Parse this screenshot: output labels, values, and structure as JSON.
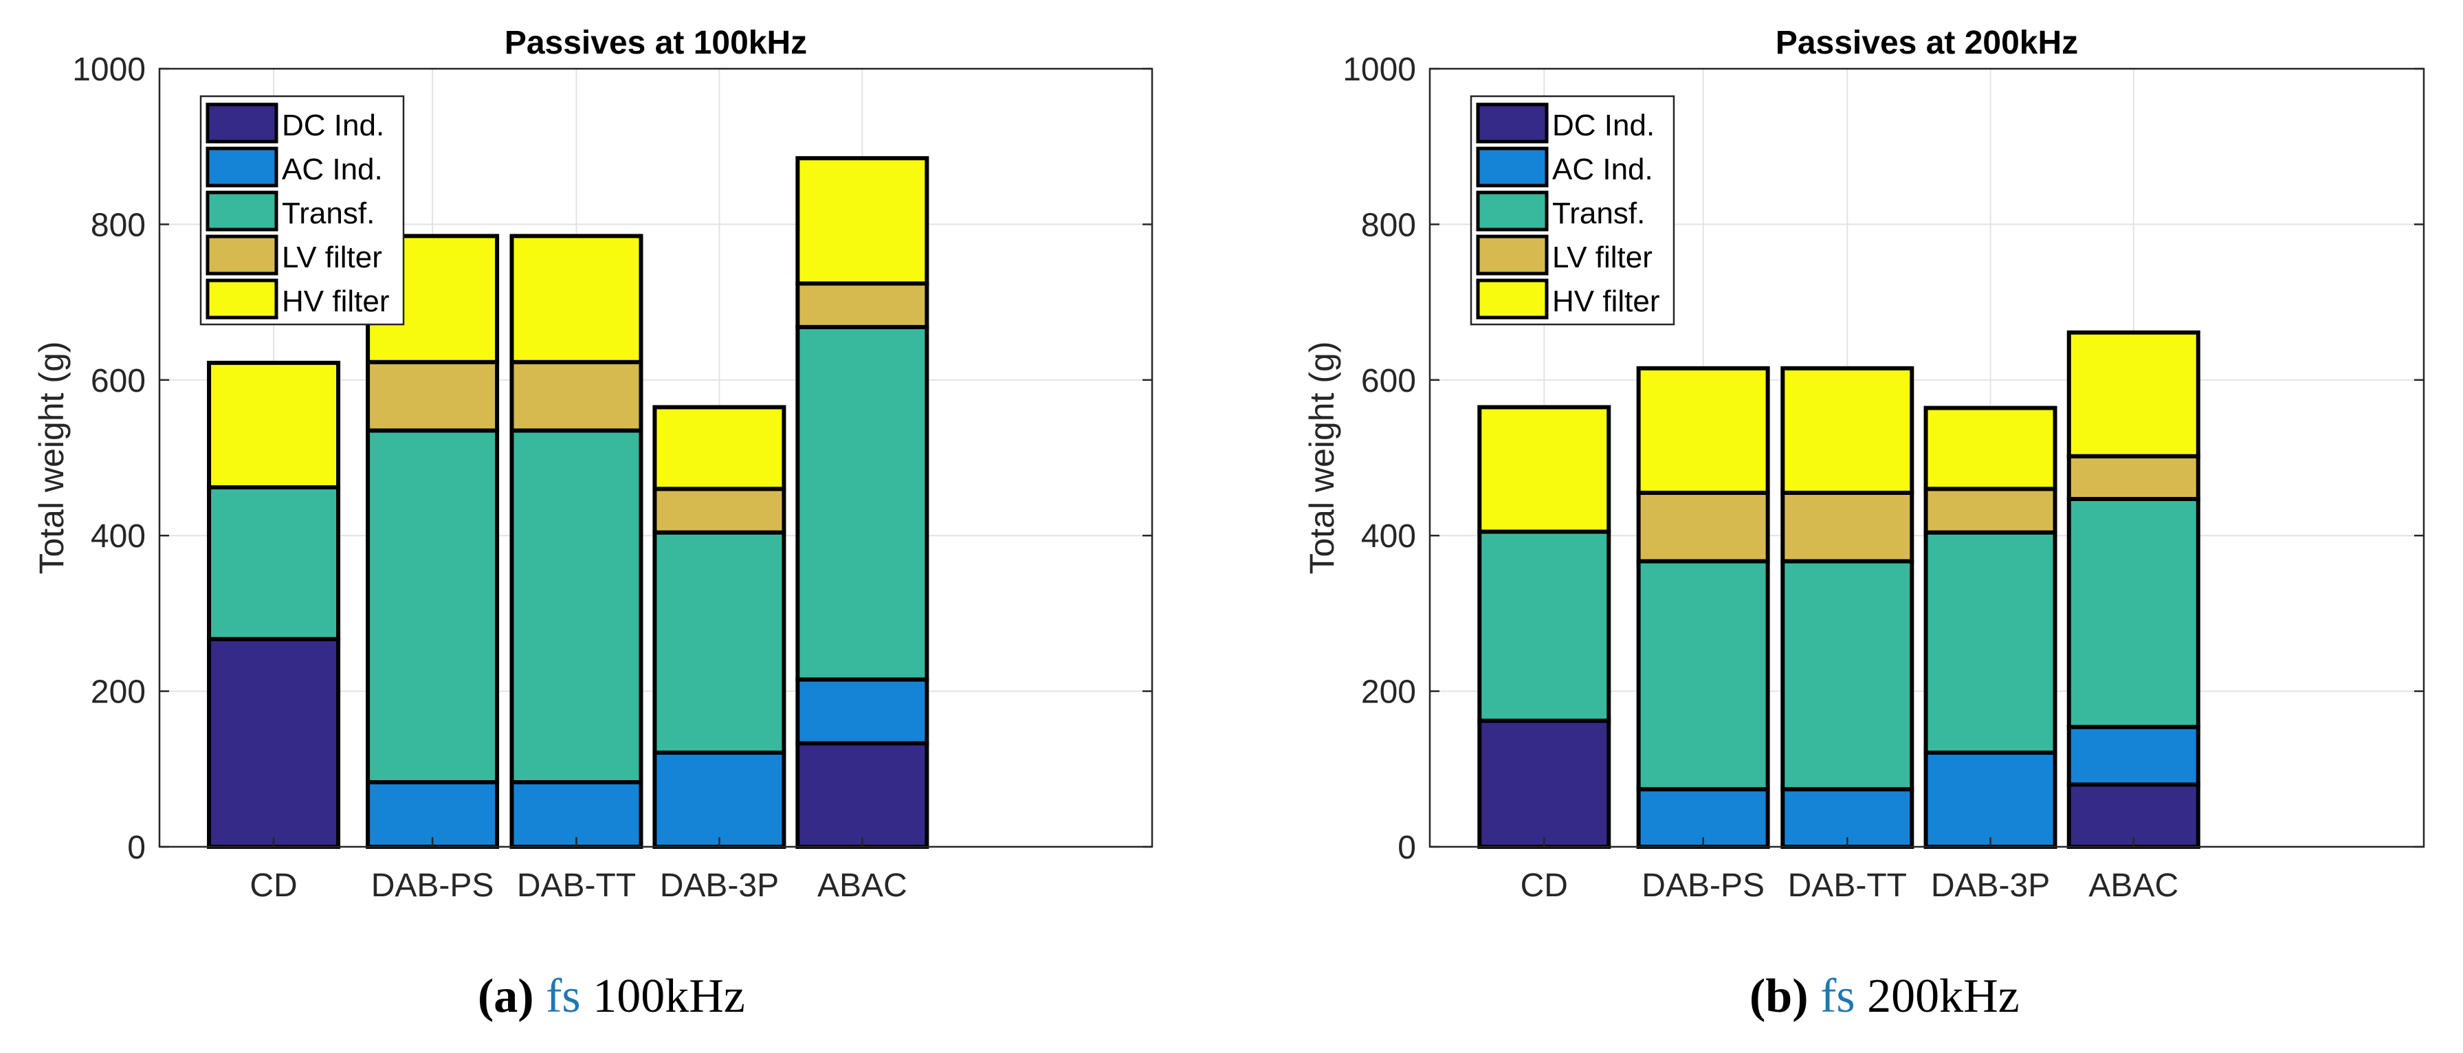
{
  "chart_data": [
    {
      "type": "bar",
      "stacked": true,
      "title": "Passives at 100kHz",
      "xlabel": "",
      "ylabel": "Total weight (g)",
      "ylim": [
        0,
        1000
      ],
      "yticks": [
        0,
        200,
        400,
        600,
        800,
        1000
      ],
      "grid": true,
      "legend_position": "top-left",
      "categories": [
        "CD",
        "DAB-PS",
        "DAB-TT",
        "DAB-3P",
        "ABAC"
      ],
      "series": [
        {
          "name": "DC Ind.",
          "color": "#352a87",
          "values": [
            267,
            0,
            0,
            0,
            133
          ]
        },
        {
          "name": "AC Ind.",
          "color": "#1584d7",
          "values": [
            0,
            83,
            83,
            121,
            82
          ]
        },
        {
          "name": "Transf.",
          "color": "#38b99e",
          "values": [
            195,
            452,
            452,
            283,
            453
          ]
        },
        {
          "name": "LV filter",
          "color": "#d7ba4f",
          "values": [
            0,
            88,
            88,
            56,
            56
          ]
        },
        {
          "name": "HV filter",
          "color": "#f9fb0e",
          "values": [
            160,
            162,
            162,
            105,
            161
          ]
        }
      ]
    },
    {
      "type": "bar",
      "stacked": true,
      "title": "Passives at 200kHz",
      "xlabel": "",
      "ylabel": "Total weight (g)",
      "ylim": [
        0,
        1000
      ],
      "yticks": [
        0,
        200,
        400,
        600,
        800,
        1000
      ],
      "grid": true,
      "legend_position": "top-left",
      "categories": [
        "CD",
        "DAB-PS",
        "DAB-TT",
        "DAB-3P",
        "ABAC"
      ],
      "series": [
        {
          "name": "DC Ind.",
          "color": "#352a87",
          "values": [
            162,
            0,
            0,
            0,
            80
          ]
        },
        {
          "name": "AC Ind.",
          "color": "#1584d7",
          "values": [
            0,
            74,
            74,
            121,
            74
          ]
        },
        {
          "name": "Transf.",
          "color": "#38b99e",
          "values": [
            243,
            293,
            293,
            283,
            293
          ]
        },
        {
          "name": "LV filter",
          "color": "#d7ba4f",
          "values": [
            0,
            88,
            88,
            56,
            55
          ]
        },
        {
          "name": "HV filter",
          "color": "#f9fb0e",
          "values": [
            160,
            160,
            160,
            104,
            159
          ]
        }
      ]
    }
  ],
  "captions": [
    {
      "label": "(a)",
      "link": "fs",
      "text": "100kHz"
    },
    {
      "label": "(b)",
      "link": "fs",
      "text": "200kHz"
    }
  ]
}
